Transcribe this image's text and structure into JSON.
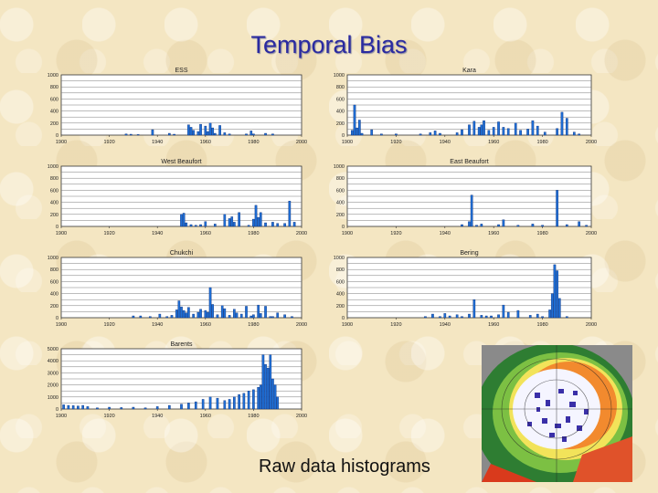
{
  "slide": {
    "title": "Temporal Bias",
    "caption": "Raw data histograms"
  },
  "colors": {
    "bar": "#1f6fd6",
    "bar_edge": "#0b2f7a",
    "grid": "#7a7a7a"
  },
  "chart_data": [
    {
      "type": "bar",
      "title": "ESS",
      "xlim": [
        1900,
        2000
      ],
      "ylim": [
        0,
        1000
      ],
      "xticks": [
        1900,
        1920,
        1940,
        1960,
        1980,
        2000
      ],
      "yticks": [
        0,
        200,
        400,
        600,
        800,
        1000
      ],
      "x": [
        1927,
        1929,
        1932,
        1938,
        1945,
        1947,
        1953,
        1954,
        1955,
        1957,
        1958,
        1960,
        1961,
        1962,
        1963,
        1964,
        1966,
        1968,
        1970,
        1977,
        1979,
        1980,
        1985,
        1988
      ],
      "values": [
        20,
        15,
        10,
        90,
        30,
        15,
        170,
        130,
        80,
        60,
        180,
        150,
        60,
        200,
        120,
        30,
        160,
        40,
        20,
        20,
        70,
        20,
        30,
        20
      ]
    },
    {
      "type": "bar",
      "title": "Kara",
      "xlim": [
        1900,
        2000
      ],
      "ylim": [
        0,
        1000
      ],
      "xticks": [
        1900,
        1920,
        1940,
        1960,
        1980,
        2000
      ],
      "yticks": [
        0,
        200,
        400,
        600,
        800,
        1000
      ],
      "x": [
        1902,
        1903,
        1904,
        1905,
        1906,
        1910,
        1914,
        1920,
        1930,
        1934,
        1936,
        1938,
        1945,
        1947,
        1950,
        1952,
        1954,
        1955,
        1956,
        1958,
        1960,
        1962,
        1964,
        1966,
        1969,
        1971,
        1974,
        1976,
        1978,
        1981,
        1986,
        1988,
        1990,
        1993,
        1995
      ],
      "values": [
        80,
        500,
        120,
        250,
        30,
        90,
        20,
        20,
        20,
        40,
        70,
        30,
        40,
        90,
        170,
        230,
        130,
        170,
        240,
        80,
        130,
        220,
        130,
        110,
        200,
        80,
        100,
        240,
        150,
        50,
        110,
        380,
        280,
        50,
        20
      ]
    },
    {
      "type": "bar",
      "title": "West Beaufort",
      "xlim": [
        1900,
        2000
      ],
      "ylim": [
        0,
        1000
      ],
      "xticks": [
        1900,
        1920,
        1940,
        1960,
        1980,
        2000
      ],
      "yticks": [
        0,
        200,
        400,
        600,
        800,
        1000
      ],
      "x": [
        1950,
        1951,
        1952,
        1954,
        1956,
        1958,
        1960,
        1964,
        1968,
        1970,
        1971,
        1972,
        1974,
        1978,
        1980,
        1981,
        1982,
        1983,
        1985,
        1988,
        1990,
        1993,
        1995,
        1997
      ],
      "values": [
        200,
        220,
        60,
        30,
        20,
        30,
        80,
        40,
        200,
        130,
        160,
        70,
        230,
        20,
        120,
        350,
        150,
        230,
        60,
        70,
        50,
        50,
        420,
        70
      ]
    },
    {
      "type": "bar",
      "title": "East Beaufort",
      "xlim": [
        1900,
        2000
      ],
      "ylim": [
        0,
        1000
      ],
      "xticks": [
        1900,
        1920,
        1940,
        1960,
        1980,
        2000
      ],
      "yticks": [
        0,
        200,
        400,
        600,
        800,
        1000
      ],
      "x": [
        1947,
        1950,
        1951,
        1953,
        1955,
        1962,
        1964,
        1970,
        1976,
        1980,
        1986,
        1990,
        1995,
        1998
      ],
      "values": [
        30,
        80,
        520,
        20,
        40,
        30,
        110,
        20,
        40,
        20,
        600,
        30,
        80,
        20
      ]
    },
    {
      "type": "bar",
      "title": "Chukchi",
      "xlim": [
        1900,
        2000
      ],
      "ylim": [
        0,
        1000
      ],
      "xticks": [
        1900,
        1920,
        1940,
        1960,
        1980,
        2000
      ],
      "yticks": [
        0,
        200,
        400,
        600,
        800,
        1000
      ],
      "x": [
        1930,
        1933,
        1937,
        1941,
        1944,
        1946,
        1948,
        1949,
        1950,
        1951,
        1952,
        1953,
        1955,
        1957,
        1958,
        1960,
        1961,
        1962,
        1963,
        1965,
        1967,
        1968,
        1970,
        1972,
        1973,
        1975,
        1977,
        1979,
        1980,
        1982,
        1983,
        1985,
        1987,
        1988,
        1990,
        1993,
        1996
      ],
      "values": [
        30,
        30,
        20,
        60,
        20,
        40,
        130,
        280,
        180,
        120,
        80,
        170,
        60,
        90,
        140,
        120,
        90,
        500,
        220,
        50,
        200,
        150,
        40,
        140,
        80,
        60,
        190,
        30,
        50,
        210,
        70,
        190,
        20,
        20,
        80,
        50,
        20
      ]
    },
    {
      "type": "bar",
      "title": "Bering",
      "xlim": [
        1900,
        2000
      ],
      "ylim": [
        0,
        1000
      ],
      "xticks": [
        1900,
        1920,
        1940,
        1960,
        1980,
        2000
      ],
      "yticks": [
        0,
        200,
        400,
        600,
        800,
        1000
      ],
      "x": [
        1932,
        1935,
        1938,
        1940,
        1942,
        1945,
        1947,
        1950,
        1952,
        1955,
        1957,
        1959,
        1962,
        1964,
        1966,
        1970,
        1975,
        1978,
        1980,
        1983,
        1984,
        1985,
        1986,
        1987,
        1990
      ],
      "values": [
        20,
        60,
        20,
        70,
        30,
        50,
        20,
        60,
        300,
        40,
        30,
        30,
        50,
        210,
        90,
        120,
        40,
        60,
        20,
        130,
        400,
        880,
        780,
        320,
        20
      ]
    },
    {
      "type": "bar",
      "title": "Barents",
      "xlim": [
        1900,
        2000
      ],
      "ylim": [
        0,
        5000
      ],
      "xticks": [
        1900,
        1920,
        1940,
        1960,
        1980,
        2000
      ],
      "yticks": [
        0,
        1000,
        2000,
        3000,
        4000,
        5000
      ],
      "x": [
        1901,
        1903,
        1905,
        1907,
        1909,
        1911,
        1915,
        1920,
        1925,
        1930,
        1935,
        1940,
        1945,
        1950,
        1953,
        1956,
        1959,
        1962,
        1965,
        1968,
        1970,
        1972,
        1974,
        1976,
        1978,
        1980,
        1982,
        1983,
        1984,
        1985,
        1986,
        1987,
        1988,
        1989,
        1990
      ],
      "values": [
        350,
        300,
        280,
        250,
        300,
        200,
        100,
        150,
        120,
        150,
        100,
        200,
        300,
        400,
        500,
        600,
        800,
        1000,
        900,
        700,
        800,
        1000,
        1200,
        1300,
        1500,
        1600,
        1800,
        2000,
        4500,
        3700,
        3400,
        4500,
        2500,
        2000,
        1000
      ]
    }
  ]
}
